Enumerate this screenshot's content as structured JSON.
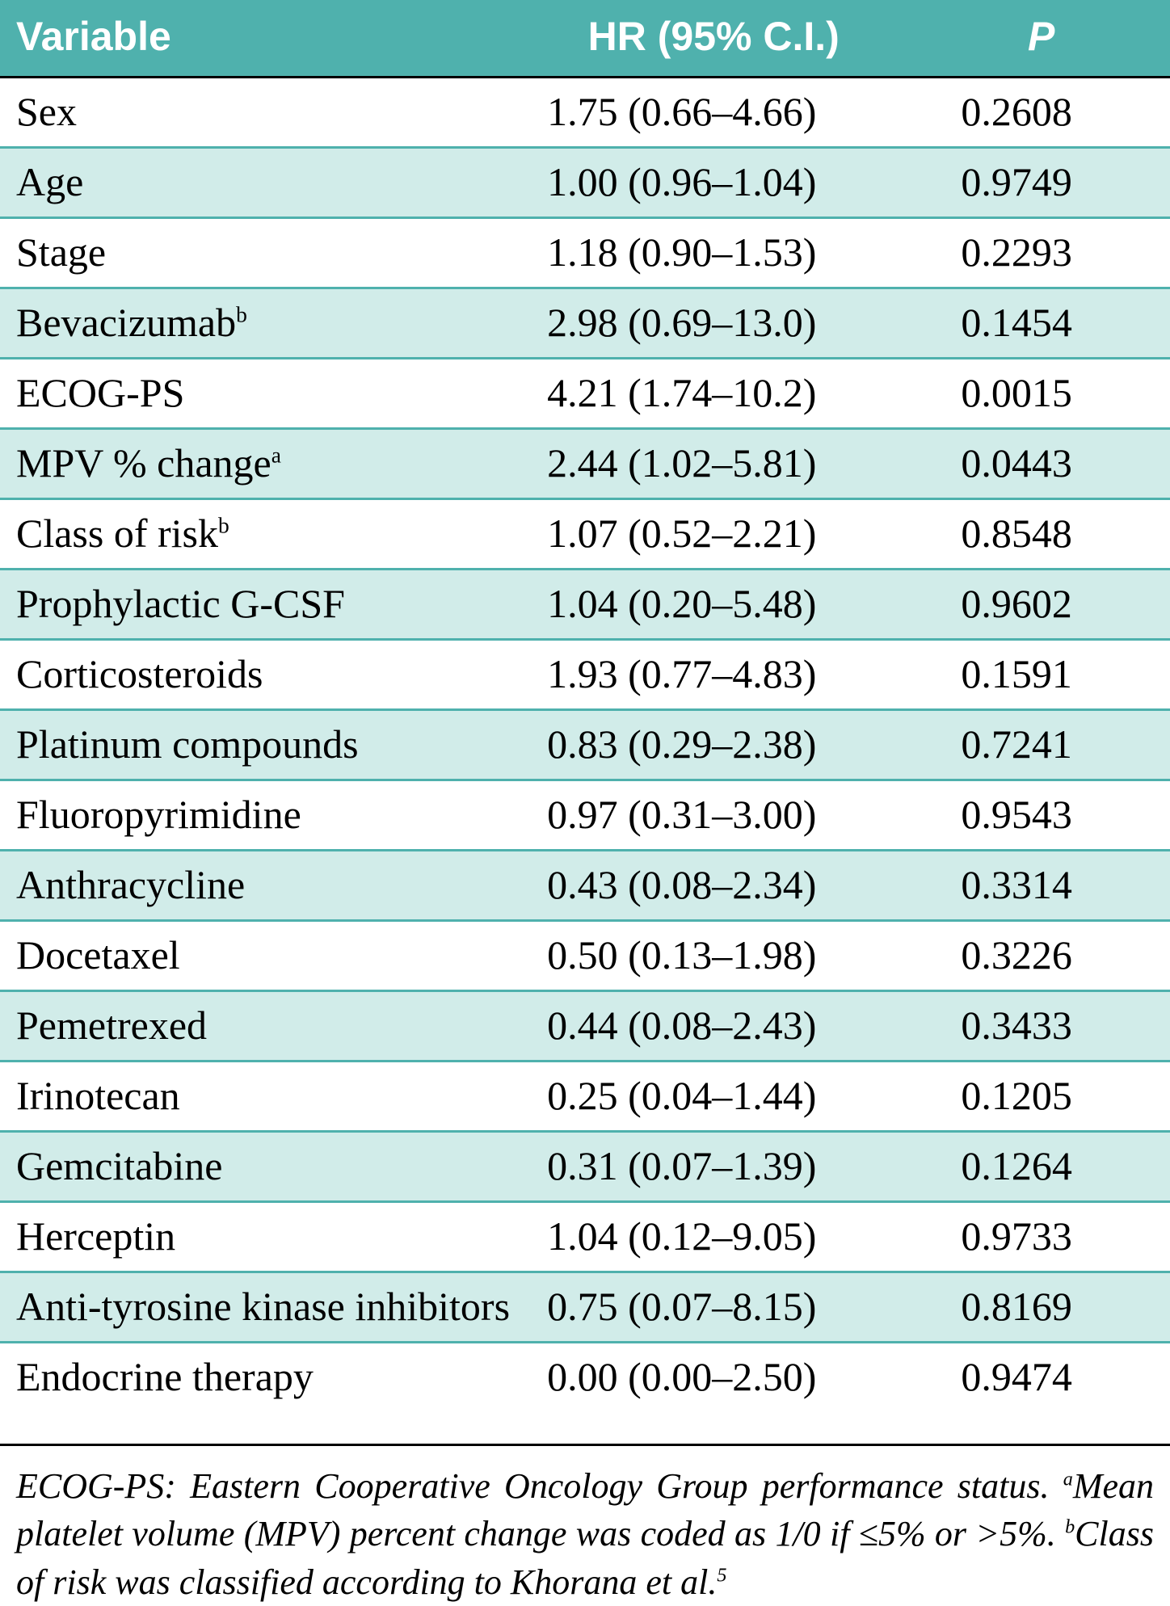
{
  "table": {
    "header_bg": "#4fb1ad",
    "header_fg": "#ffffff",
    "row_alt_bg": "#d1ece9",
    "row_border_color": "#4fb1ad",
    "top_rule_color": "#000000",
    "font_body": "Times New Roman",
    "font_header": "Arial",
    "fontsize_body": 50,
    "fontsize_footnote": 44,
    "columns": [
      {
        "key": "variable",
        "label": "Variable",
        "align": "left"
      },
      {
        "key": "hr",
        "label": "HR (95% C.I.)",
        "align": "center"
      },
      {
        "key": "p",
        "label": "P",
        "align": "center",
        "italic": true
      }
    ],
    "rows": [
      {
        "variable": "Sex",
        "sup": "",
        "hr": "1.75 (0.66–4.66)",
        "p": "0.2608"
      },
      {
        "variable": "Age",
        "sup": "",
        "hr": "1.00 (0.96–1.04)",
        "p": "0.9749"
      },
      {
        "variable": "Stage",
        "sup": "",
        "hr": "1.18 (0.90–1.53)",
        "p": "0.2293"
      },
      {
        "variable": "Bevacizumab",
        "sup": "b",
        "hr": "2.98 (0.69–13.0)",
        "p": "0.1454"
      },
      {
        "variable": "ECOG-PS",
        "sup": "",
        "hr": "4.21 (1.74–10.2)",
        "p": "0.0015"
      },
      {
        "variable": "MPV % change",
        "sup": "a",
        "hr": "2.44 (1.02–5.81)",
        "p": "0.0443"
      },
      {
        "variable": "Class of risk",
        "sup": "b",
        "hr": "1.07 (0.52–2.21)",
        "p": "0.8548"
      },
      {
        "variable": "Prophylactic G-CSF",
        "sup": "",
        "hr": "1.04 (0.20–5.48)",
        "p": "0.9602"
      },
      {
        "variable": "Corticosteroids",
        "sup": "",
        "hr": "1.93 (0.77–4.83)",
        "p": "0.1591"
      },
      {
        "variable": "Platinum compounds",
        "sup": "",
        "hr": "0.83 (0.29–2.38)",
        "p": "0.7241"
      },
      {
        "variable": "Fluoropyrimidine",
        "sup": "",
        "hr": "0.97 (0.31–3.00)",
        "p": "0.9543"
      },
      {
        "variable": "Anthracycline",
        "sup": "",
        "hr": "0.43 (0.08–2.34)",
        "p": "0.3314"
      },
      {
        "variable": "Docetaxel",
        "sup": "",
        "hr": "0.50 (0.13–1.98)",
        "p": "0.3226"
      },
      {
        "variable": "Pemetrexed",
        "sup": "",
        "hr": "0.44 (0.08–2.43)",
        "p": "0.3433"
      },
      {
        "variable": "Irinotecan",
        "sup": "",
        "hr": "0.25 (0.04–1.44)",
        "p": "0.1205"
      },
      {
        "variable": "Gemcitabine",
        "sup": "",
        "hr": "0.31 (0.07–1.39)",
        "p": "0.1264"
      },
      {
        "variable": "Herceptin",
        "sup": "",
        "hr": "1.04 (0.12–9.05)",
        "p": "0.9733"
      },
      {
        "variable": "Anti-tyrosine kinase inhibitors",
        "sup": "",
        "hr": "0.75 (0.07–8.15)",
        "p": "0.8169"
      },
      {
        "variable": "Endocrine therapy",
        "sup": "",
        "hr": "0.00 (0.00–2.50)",
        "p": "0.9474"
      }
    ]
  },
  "footnote": {
    "seg1": "ECOG-PS: Eastern Cooperative Oncology Group performance status. ",
    "supA": "a",
    "seg2": "Mean platelet volume (MPV) percent change was coded as 1/0 if ≤5% or >5%. ",
    "supB": "b",
    "seg3": "Class of risk was classified according to Khorana et al.",
    "supRef": "5"
  }
}
